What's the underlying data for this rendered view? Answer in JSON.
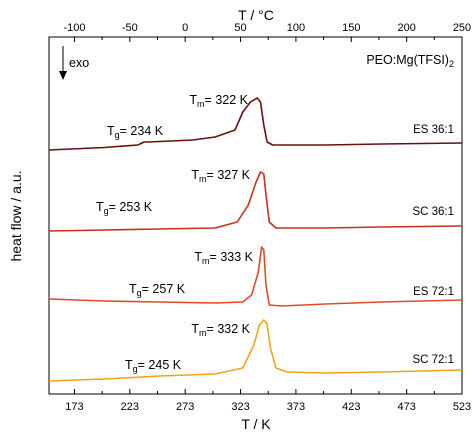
{
  "chart_data": {
    "type": "line",
    "xlabel": "T / K",
    "ylabel": "heat flow / a.u.",
    "x2label": "T / °C",
    "xlim": [
      150,
      523
    ],
    "x_ticks": [
      "173",
      "223",
      "273",
      "323",
      "373",
      "423",
      "473",
      "523"
    ],
    "x2_ticks": [
      "-100",
      "-50",
      "0",
      "50",
      "100",
      "150",
      "200",
      "250"
    ],
    "y_ticks_shown": false,
    "grid": false,
    "annotations": {
      "exo": "exo",
      "sample": "PEO:Mg(TFSI)",
      "sample_sub": "2"
    },
    "series": [
      {
        "name": "ES 36:1",
        "color": "#6b0f0f",
        "tm_text": "T",
        "tm_sub": "m",
        "tm_val": "= 322 K",
        "tg_text": "T",
        "tg_sub": "g",
        "tg_val": "= 234 K",
        "points": [
          [
            150,
            150
          ],
          [
            200,
            147.5
          ],
          [
            230,
            145
          ],
          [
            236,
            142
          ],
          [
            240,
            142
          ],
          [
            280,
            140
          ],
          [
            300,
            137
          ],
          [
            318,
            130
          ],
          [
            325,
            112
          ],
          [
            332,
            102
          ],
          [
            338,
            98
          ],
          [
            341,
            102
          ],
          [
            344,
            125
          ],
          [
            347,
            142
          ],
          [
            352,
            145
          ],
          [
            400,
            145
          ],
          [
            450,
            144
          ],
          [
            523,
            143
          ]
        ]
      },
      {
        "name": "SC 36:1",
        "color": "#c3321c",
        "tm_text": "T",
        "tm_sub": "m",
        "tm_val": "= 327 K",
        "tg_text": "T",
        "tg_sub": "g",
        "tg_val": "= 253 K",
        "points": [
          [
            150,
            231
          ],
          [
            200,
            230
          ],
          [
            250,
            229
          ],
          [
            300,
            228
          ],
          [
            320,
            222
          ],
          [
            330,
            205
          ],
          [
            337,
            182
          ],
          [
            341,
            172
          ],
          [
            344,
            174
          ],
          [
            346,
            195
          ],
          [
            349,
            222
          ],
          [
            355,
            228
          ],
          [
            400,
            228
          ],
          [
            450,
            227
          ],
          [
            523,
            226
          ]
        ]
      },
      {
        "name": "ES 72:1",
        "color": "#e04a2a",
        "tm_text": "T",
        "tm_sub": "m",
        "tm_val": "= 333 K",
        "tg_text": "T",
        "tg_sub": "g",
        "tg_val": "= 257 K",
        "points": [
          [
            150,
            299
          ],
          [
            200,
            301
          ],
          [
            250,
            302
          ],
          [
            300,
            303
          ],
          [
            325,
            302
          ],
          [
            333,
            295
          ],
          [
            339,
            272
          ],
          [
            342,
            247
          ],
          [
            344,
            250
          ],
          [
            346,
            285
          ],
          [
            349,
            305
          ],
          [
            360,
            306
          ],
          [
            400,
            304
          ],
          [
            450,
            302
          ],
          [
            523,
            300
          ]
        ]
      },
      {
        "name": "SC 72:1",
        "color": "#f4a21c",
        "tm_text": "T",
        "tm_sub": "m",
        "tm_val": "= 332 K",
        "tg_text": "T",
        "tg_sub": "g",
        "tg_val": "= 245 K",
        "points": [
          [
            150,
            381
          ],
          [
            200,
            379
          ],
          [
            250,
            376
          ],
          [
            300,
            374
          ],
          [
            325,
            368
          ],
          [
            335,
            345
          ],
          [
            340,
            325
          ],
          [
            344,
            320
          ],
          [
            347,
            324
          ],
          [
            350,
            348
          ],
          [
            355,
            368
          ],
          [
            365,
            372
          ],
          [
            400,
            373
          ],
          [
            450,
            372
          ],
          [
            523,
            370
          ]
        ]
      }
    ]
  }
}
